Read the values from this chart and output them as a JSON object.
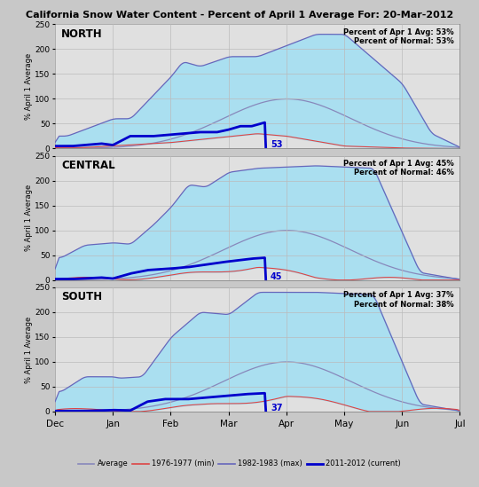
{
  "title": "California Snow Water Content - Percent of April 1 Average For: 20-Mar-2012",
  "ylabel": "% April 1 Average",
  "x_labels": [
    "Dec",
    "Jan",
    "Feb",
    "Mar",
    "Apr",
    "May",
    "Jun",
    "Jul"
  ],
  "panels": [
    {
      "label": "NORTH",
      "pct_avg": "53%",
      "pct_normal": "53%",
      "annotation": "53"
    },
    {
      "label": "CENTRAL",
      "pct_avg": "45%",
      "pct_normal": "46%",
      "annotation": "45"
    },
    {
      "label": "SOUTH",
      "pct_avg": "37%",
      "pct_normal": "38%",
      "annotation": "37"
    }
  ],
  "bg_color": "#c8c8c8",
  "plot_bg_color": "#e0e0e0",
  "fill_color": "#aadff0",
  "avg_color": "#8888bb",
  "min_color": "#dd4444",
  "max_color": "#6666bb",
  "current_color": "#0000cc",
  "ylim": [
    0,
    250
  ],
  "yticks": [
    0,
    50,
    100,
    150,
    200,
    250
  ],
  "ann_vals": [
    53,
    45,
    37
  ]
}
